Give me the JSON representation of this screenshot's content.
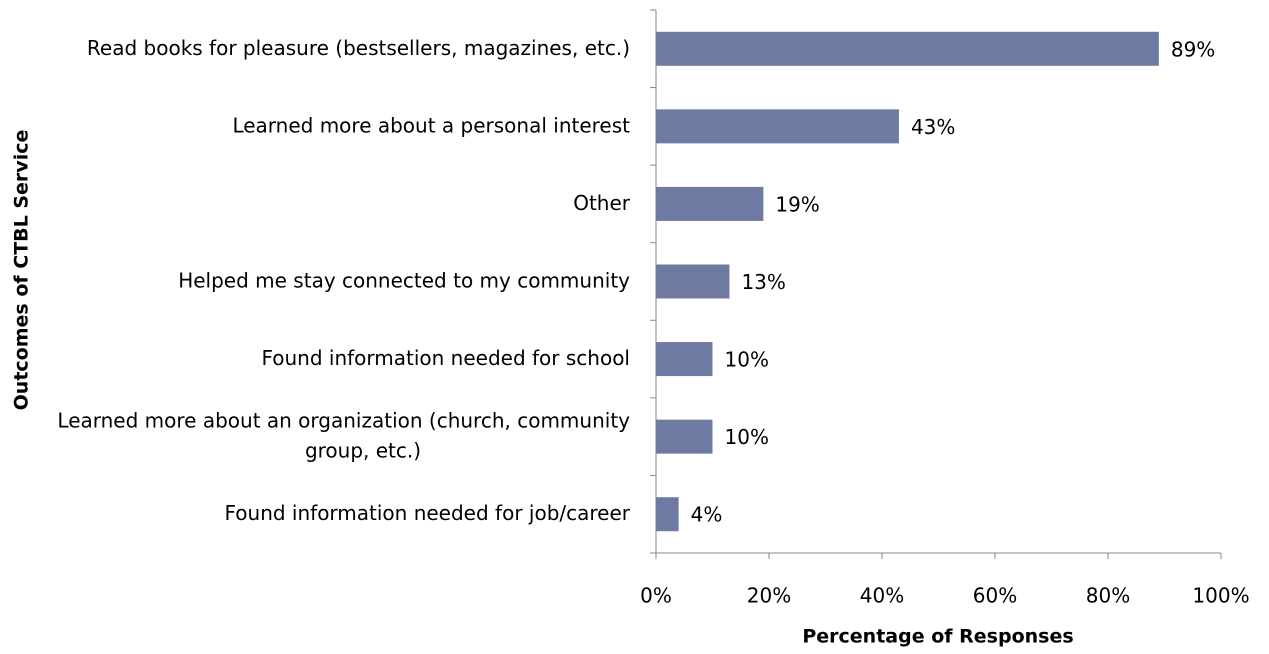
{
  "chart_data": {
    "type": "bar",
    "orientation": "horizontal",
    "categories": [
      "Read books for pleasure (bestsellers, magazines, etc.)",
      "Learned more about a personal interest",
      "Other",
      "Helped me stay connected to my community",
      "Found information needed for school",
      "Learned more about an organization (church, community group, etc.)",
      "Found information needed for job/career"
    ],
    "values": [
      89,
      43,
      19,
      13,
      10,
      10,
      4
    ],
    "value_labels": [
      "89%",
      "43%",
      "19%",
      "13%",
      "10%",
      "10%",
      "4%"
    ],
    "color": "#6f7aa3",
    "xlim": [
      0,
      100
    ],
    "xticks": [
      {
        "value": 0,
        "label": "0%"
      },
      {
        "value": 20,
        "label": "20%"
      },
      {
        "value": 40,
        "label": "40%"
      },
      {
        "value": 60,
        "label": "60%"
      },
      {
        "value": 80,
        "label": "80%"
      },
      {
        "value": 100,
        "label": "100%"
      }
    ],
    "xlabel": "Percentage of Responses",
    "ylabel": "Outcomes of CTBL Service",
    "grid": false
  }
}
